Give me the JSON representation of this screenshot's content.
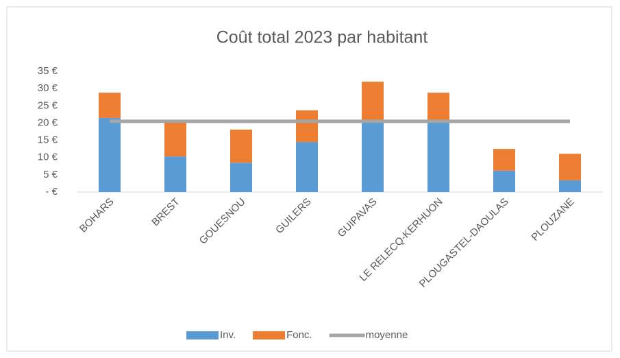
{
  "chart_data": {
    "type": "bar",
    "stacked": true,
    "title": "Coût total 2023 par habitant",
    "categories": [
      "BOHARS",
      "BREST",
      "GOUESNOU",
      "GUILERS",
      "GUIPAVAS",
      "LE RELECQ-KERHUON",
      "PLOUGASTEL-DAOULAS",
      "PLOUZANE"
    ],
    "series": [
      {
        "name": "Inv.",
        "type": "bar",
        "color": "#5b9bd5",
        "values": [
          21.5,
          10.3,
          8.5,
          14.5,
          20.3,
          20.3,
          6.2,
          3.4
        ]
      },
      {
        "name": "Fonc.",
        "type": "bar",
        "color": "#ed7d31",
        "values": [
          7.3,
          9.8,
          9.6,
          9.2,
          11.7,
          8.5,
          6.3,
          7.7
        ]
      },
      {
        "name": "moyenne",
        "type": "line",
        "color": "#a5a5a5",
        "values": [
          20.5,
          20.5,
          20.5,
          20.5,
          20.5,
          20.5,
          20.5,
          20.5
        ]
      }
    ],
    "ylim": [
      0,
      35
    ],
    "yticks": [
      {
        "value": 0,
        "label": "-  €"
      },
      {
        "value": 5,
        "label": "5 €"
      },
      {
        "value": 10,
        "label": "10 €"
      },
      {
        "value": 15,
        "label": "15 €"
      },
      {
        "value": 20,
        "label": "20 €"
      },
      {
        "value": 25,
        "label": "25 €"
      },
      {
        "value": 30,
        "label": "30 €"
      },
      {
        "value": 35,
        "label": "35 €"
      }
    ],
    "grid": false,
    "legend": "bottom"
  }
}
